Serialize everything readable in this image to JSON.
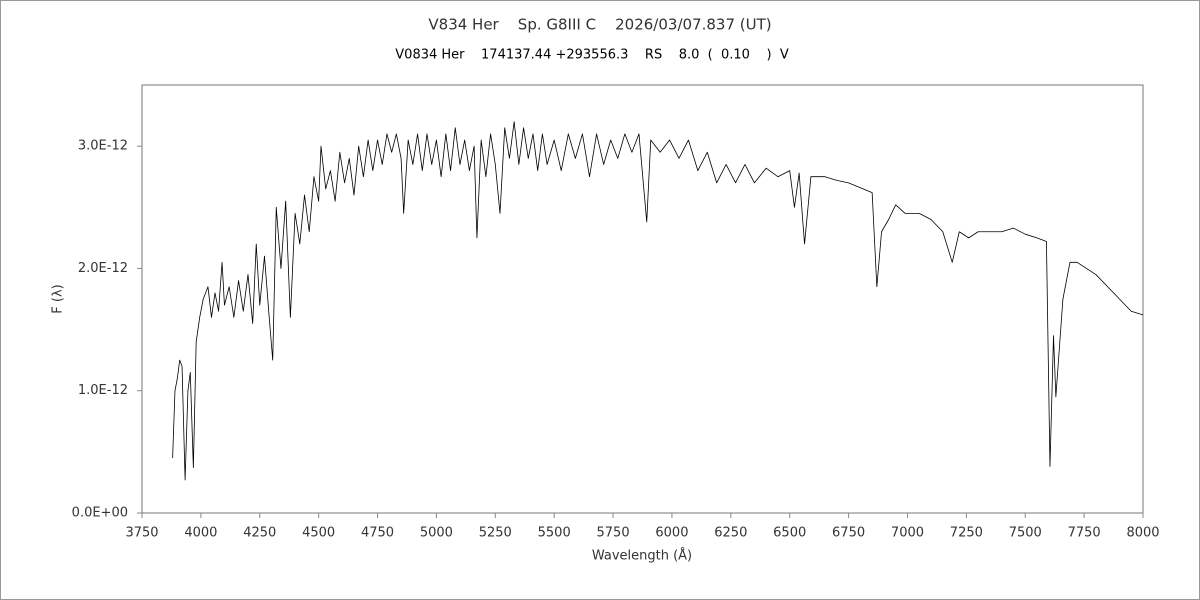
{
  "chart_data": {
    "type": "line",
    "title": "V834 Her    Sp. G8III C    2026/03/07.837 (UT)",
    "subtitle": "V0834 Her    174137.44 +293556.3    RS    8.0  (  0.10    )  V",
    "xlabel": "Wavelength (Å)",
    "ylabel": "F (λ)",
    "xlim": [
      3750,
      8000
    ],
    "xticks": [
      3750,
      4000,
      4250,
      4500,
      4750,
      5000,
      5250,
      5500,
      5750,
      6000,
      6250,
      6500,
      6750,
      7000,
      7250,
      7500,
      7750,
      8000
    ],
    "ylim": [
      0,
      3.5e-12
    ],
    "yticks": [
      {
        "value": 0,
        "label": "0.0E+00"
      },
      {
        "value": 1e-12,
        "label": "1.0E-12"
      },
      {
        "value": 2e-12,
        "label": "2.0E-12"
      },
      {
        "value": 3e-12,
        "label": "3.0E-12"
      }
    ],
    "grid": false,
    "series": [
      {
        "color": "#000000",
        "x": [
          3880,
          3890,
          3900,
          3910,
          3920,
          3933,
          3945,
          3955,
          3968,
          3980,
          3995,
          4010,
          4030,
          4045,
          4060,
          4075,
          4090,
          4100,
          4120,
          4140,
          4160,
          4180,
          4200,
          4220,
          4235,
          4250,
          4270,
          4290,
          4305,
          4320,
          4340,
          4360,
          4380,
          4400,
          4420,
          4440,
          4460,
          4480,
          4500,
          4510,
          4530,
          4550,
          4570,
          4590,
          4610,
          4630,
          4650,
          4670,
          4690,
          4710,
          4730,
          4750,
          4770,
          4790,
          4810,
          4830,
          4850,
          4861,
          4880,
          4900,
          4920,
          4940,
          4960,
          4980,
          5000,
          5020,
          5040,
          5060,
          5080,
          5100,
          5120,
          5140,
          5160,
          5172,
          5190,
          5210,
          5230,
          5250,
          5270,
          5290,
          5310,
          5330,
          5350,
          5370,
          5390,
          5410,
          5430,
          5450,
          5470,
          5500,
          5530,
          5560,
          5590,
          5620,
          5650,
          5680,
          5710,
          5740,
          5770,
          5800,
          5830,
          5860,
          5893,
          5910,
          5950,
          5990,
          6030,
          6070,
          6110,
          6150,
          6190,
          6230,
          6270,
          6310,
          6350,
          6400,
          6450,
          6500,
          6520,
          6540,
          6563,
          6590,
          6650,
          6700,
          6750,
          6800,
          6850,
          6870,
          6890,
          6920,
          6950,
          6990,
          7050,
          7100,
          7150,
          7190,
          7220,
          7260,
          7300,
          7350,
          7400,
          7450,
          7500,
          7550,
          7590,
          7605,
          7620,
          7630,
          7660,
          7690,
          7720,
          7760,
          7800,
          7850,
          7900,
          7950,
          8000
        ],
        "values": [
          4.5e-13,
          1e-12,
          1.1e-12,
          1.25e-12,
          1.2e-12,
          2.7e-13,
          1e-12,
          1.15e-12,
          3.7e-13,
          1.4e-12,
          1.6e-12,
          1.75e-12,
          1.85e-12,
          1.6e-12,
          1.8e-12,
          1.65e-12,
          2.05e-12,
          1.7e-12,
          1.85e-12,
          1.6e-12,
          1.9e-12,
          1.65e-12,
          1.95e-12,
          1.55e-12,
          2.2e-12,
          1.7e-12,
          2.1e-12,
          1.6e-12,
          1.25e-12,
          2.5e-12,
          2e-12,
          2.55e-12,
          1.6e-12,
          2.45e-12,
          2.2e-12,
          2.6e-12,
          2.3e-12,
          2.75e-12,
          2.55e-12,
          3e-12,
          2.65e-12,
          2.8e-12,
          2.55e-12,
          2.95e-12,
          2.7e-12,
          2.9e-12,
          2.6e-12,
          3e-12,
          2.75e-12,
          3.05e-12,
          2.8e-12,
          3.05e-12,
          2.85e-12,
          3.1e-12,
          2.95e-12,
          3.1e-12,
          2.9e-12,
          2.45e-12,
          3.05e-12,
          2.85e-12,
          3.1e-12,
          2.8e-12,
          3.1e-12,
          2.85e-12,
          3.05e-12,
          2.75e-12,
          3.1e-12,
          2.8e-12,
          3.15e-12,
          2.85e-12,
          3.05e-12,
          2.8e-12,
          3e-12,
          2.25e-12,
          3.05e-12,
          2.75e-12,
          3.1e-12,
          2.85e-12,
          2.45e-12,
          3.15e-12,
          2.9e-12,
          3.2e-12,
          2.85e-12,
          3.15e-12,
          2.9e-12,
          3.1e-12,
          2.8e-12,
          3.1e-12,
          2.85e-12,
          3.05e-12,
          2.8e-12,
          3.1e-12,
          2.9e-12,
          3.1e-12,
          2.75e-12,
          3.1e-12,
          2.85e-12,
          3.05e-12,
          2.9e-12,
          3.1e-12,
          2.95e-12,
          3.1e-12,
          2.38e-12,
          3.05e-12,
          2.95e-12,
          3.05e-12,
          2.9e-12,
          3.05e-12,
          2.8e-12,
          2.95e-12,
          2.7e-12,
          2.85e-12,
          2.7e-12,
          2.85e-12,
          2.7e-12,
          2.82e-12,
          2.75e-12,
          2.8e-12,
          2.5e-12,
          2.78e-12,
          2.2e-12,
          2.75e-12,
          2.75e-12,
          2.72e-12,
          2.7e-12,
          2.66e-12,
          2.62e-12,
          1.85e-12,
          2.3e-12,
          2.4e-12,
          2.52e-12,
          2.45e-12,
          2.45e-12,
          2.4e-12,
          2.3e-12,
          2.05e-12,
          2.3e-12,
          2.25e-12,
          2.3e-12,
          2.3e-12,
          2.3e-12,
          2.33e-12,
          2.28e-12,
          2.25e-12,
          2.22e-12,
          3.8e-13,
          1.45e-12,
          9.5e-13,
          1.75e-12,
          2.05e-12,
          2.05e-12,
          2e-12,
          1.95e-12,
          1.85e-12,
          1.75e-12,
          1.65e-12,
          1.62e-12
        ]
      }
    ]
  }
}
